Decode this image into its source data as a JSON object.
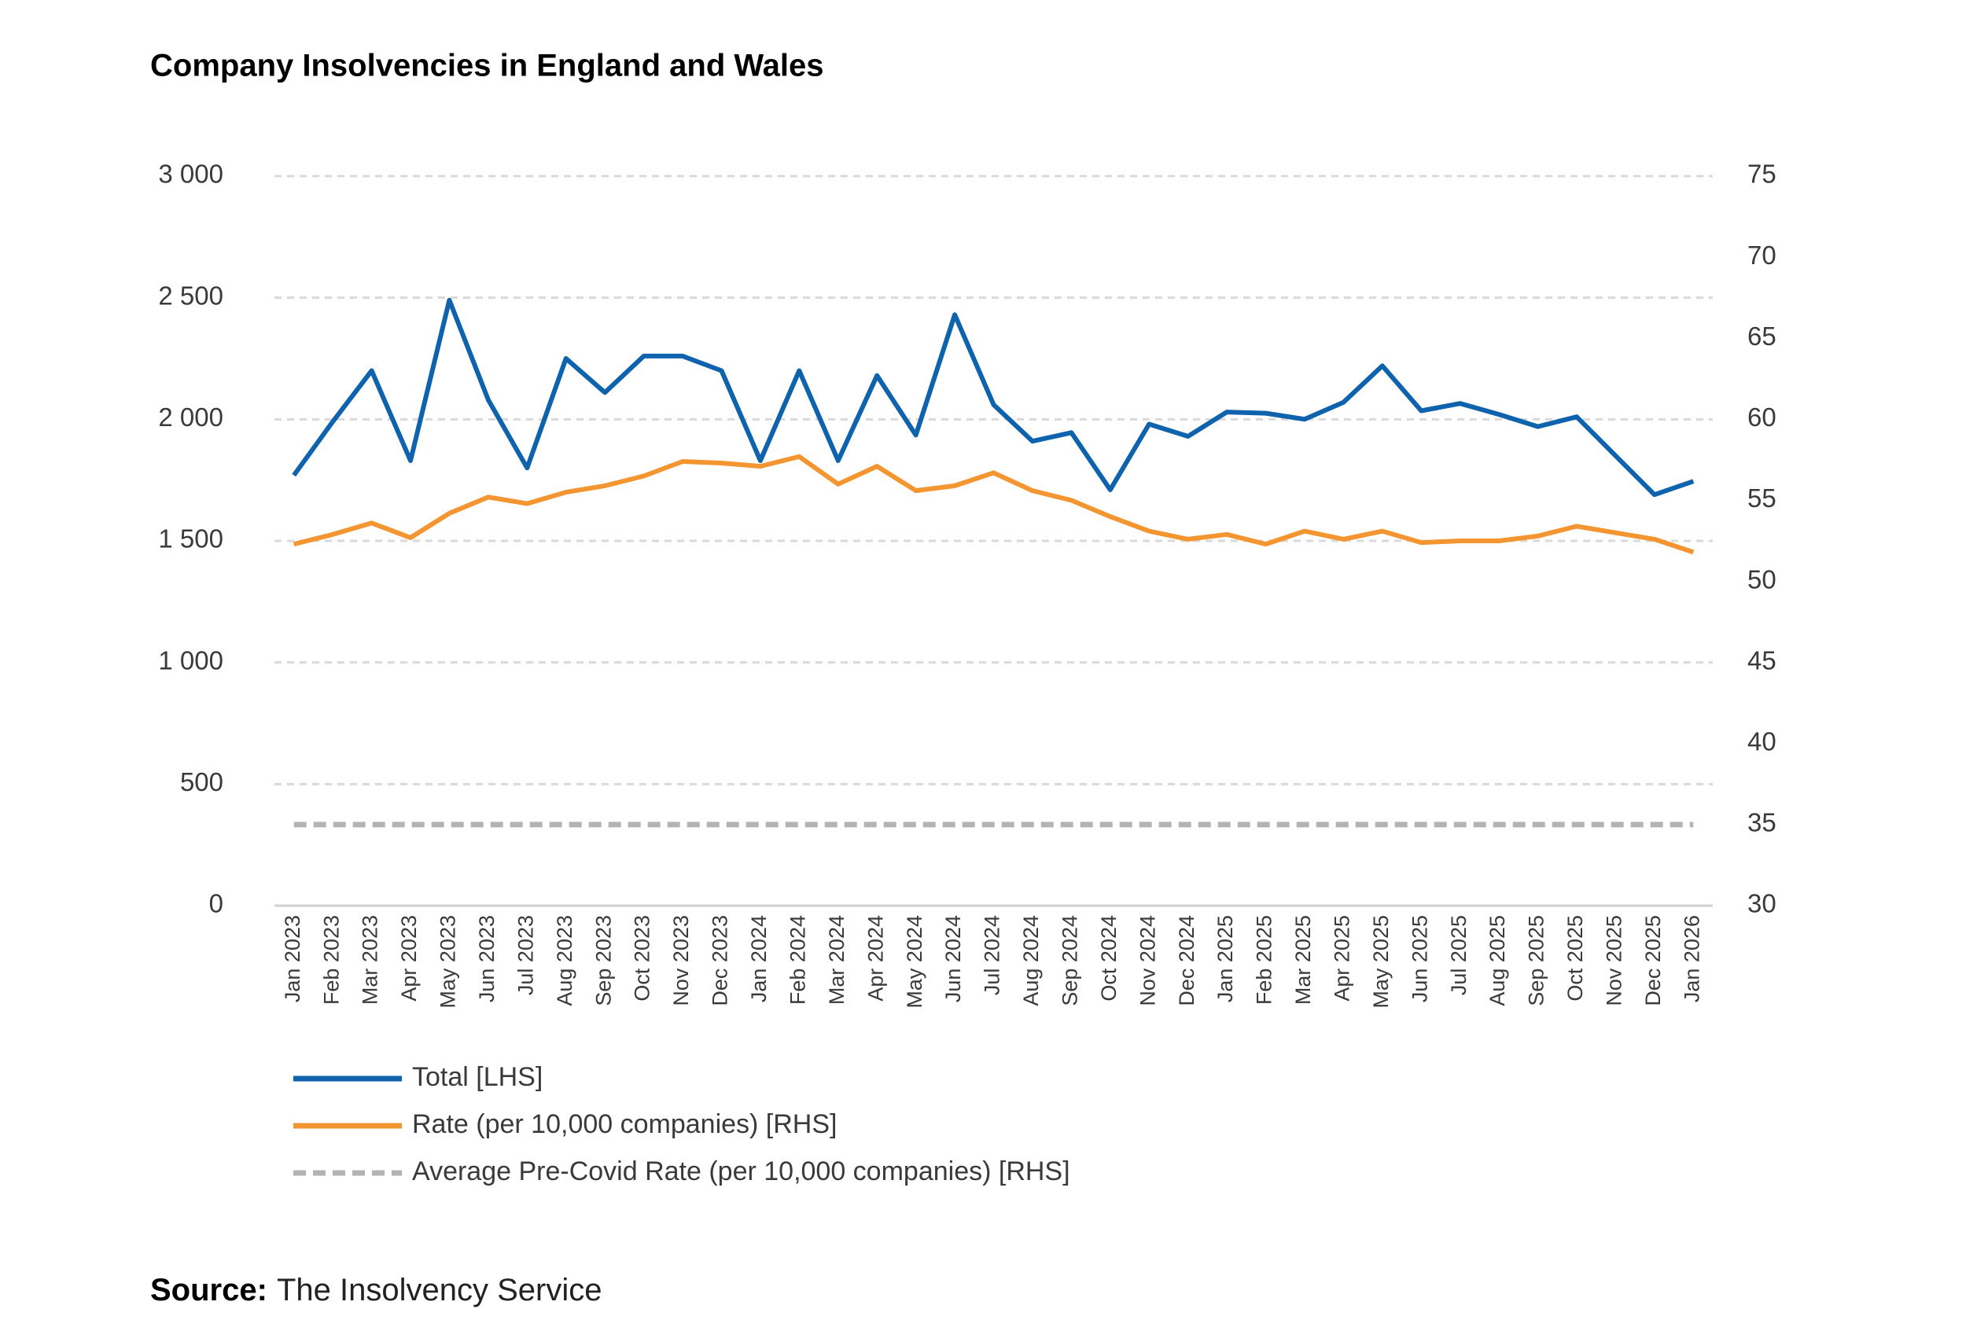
{
  "chart_data": {
    "type": "line",
    "title": "Company Insolvencies in England and Wales",
    "categories": [
      "Jan 2023",
      "Feb 2023",
      "Mar 2023",
      "Apr 2023",
      "May 2023",
      "Jun 2023",
      "Jul 2023",
      "Aug 2023",
      "Sep 2023",
      "Oct 2023",
      "Nov 2023",
      "Dec 2023",
      "Jan 2024",
      "Feb 2024",
      "Mar 2024",
      "Apr 2024",
      "May 2024",
      "Jun 2024",
      "Jul 2024",
      "Aug 2024",
      "Sep 2024",
      "Oct 2024",
      "Nov 2024",
      "Dec 2024",
      "Jan 2025",
      "Feb 2025",
      "Mar 2025",
      "Apr 2025",
      "May 2025",
      "Jun 2025",
      "Jul 2025",
      "Aug 2025",
      "Sep 2025",
      "Oct 2025",
      "Nov 2025",
      "Dec 2025",
      "Jan 2026"
    ],
    "series": [
      {
        "name": "Total [LHS]",
        "color": "#0f62ac",
        "axis": "y",
        "values": [
          1770,
          1990,
          2200,
          1830,
          2490,
          2080,
          1800,
          2250,
          2110,
          2260,
          2260,
          2200,
          1830,
          2200,
          1830,
          2180,
          1935,
          2430,
          2060,
          1910,
          1945,
          1710,
          1980,
          1930,
          2030,
          2025,
          2000,
          2070,
          2220,
          2035,
          2065,
          2020,
          1970,
          2010,
          1850,
          1690,
          1745
        ]
      },
      {
        "name": "Rate (per 10,000 companies) [RHS]",
        "color": "#f39530",
        "axis": "y2",
        "values": [
          52.3,
          52.9,
          53.6,
          52.7,
          54.2,
          55.2,
          54.8,
          55.5,
          55.9,
          56.5,
          57.4,
          57.3,
          57.1,
          57.7,
          56.0,
          57.1,
          55.6,
          55.9,
          56.7,
          55.6,
          55.0,
          54.0,
          53.1,
          52.6,
          52.9,
          52.3,
          53.1,
          52.6,
          53.1,
          52.4,
          52.5,
          52.5,
          52.8,
          53.4,
          53.0,
          52.6,
          51.8
        ]
      },
      {
        "name": "Average Pre-Covid Rate (per 10,000 companies) [RHS]",
        "color": "#b3b3b3",
        "axis": "y2",
        "line_style": "dashed",
        "values": [
          35,
          35,
          35,
          35,
          35,
          35,
          35,
          35,
          35,
          35,
          35,
          35,
          35,
          35,
          35,
          35,
          35,
          35,
          35,
          35,
          35,
          35,
          35,
          35,
          35,
          35,
          35,
          35,
          35,
          35,
          35,
          35,
          35,
          35,
          35,
          35,
          35
        ]
      }
    ],
    "ylim": [
      0,
      3000
    ],
    "yticks": [
      0,
      500,
      {
        "value": 1000,
        "label": "1 000"
      },
      {
        "value": 1500,
        "label": "1 500"
      },
      {
        "value": 2000,
        "label": "2 000"
      },
      {
        "value": 2500,
        "label": "2 500"
      },
      {
        "value": 3000,
        "label": "3 000"
      }
    ],
    "y2lim": [
      30,
      75
    ],
    "y2ticks": [
      30,
      35,
      40,
      45,
      50,
      55,
      60,
      65,
      70,
      75
    ],
    "grid": true,
    "legend": "bottom-left",
    "source": {
      "label": "Source:",
      "text": "The Insolvency Service"
    }
  }
}
